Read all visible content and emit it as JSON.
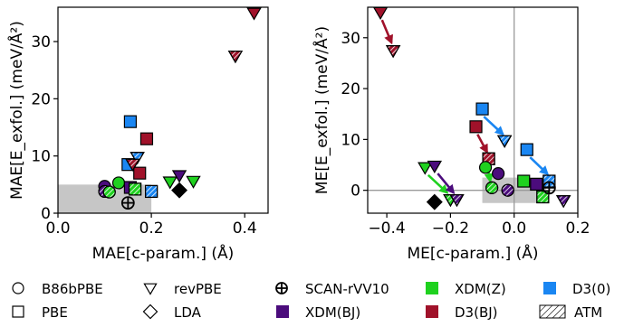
{
  "chart_data": [
    {
      "type": "scatter",
      "xlabel": "MAE[c-param.] (Å)",
      "ylabel": "MAE[E_exfol.] (meV/Å²)",
      "xlim": [
        0,
        0.45
      ],
      "ylim": [
        0,
        36
      ],
      "xticks": [
        "0.0",
        "0.2",
        "0.4"
      ],
      "yticks": [
        "0",
        "10",
        "20",
        "30"
      ],
      "shaded_region": {
        "x": [
          0,
          0.2
        ],
        "y": [
          0,
          5
        ]
      },
      "points": [
        {
          "group": "B86bPBE",
          "marker": "circle",
          "model": "XDM(BJ)",
          "hatch": false,
          "x": 0.1,
          "y": 4.7
        },
        {
          "group": "B86bPBE",
          "marker": "circle",
          "model": "XDM(BJ)",
          "hatch": true,
          "x": 0.1,
          "y": 3.8
        },
        {
          "group": "B86bPBE",
          "marker": "circle",
          "model": "XDM(Z)",
          "hatch": true,
          "x": 0.11,
          "y": 3.7
        },
        {
          "group": "B86bPBE",
          "marker": "circle",
          "model": "XDM(Z)",
          "hatch": false,
          "x": 0.13,
          "y": 5.3
        },
        {
          "group": "PBE",
          "marker": "square",
          "model": "D3(0)",
          "hatch": false,
          "x": 0.155,
          "y": 16.0
        },
        {
          "group": "PBE",
          "marker": "square",
          "model": "D3(BJ)",
          "hatch": false,
          "x": 0.19,
          "y": 13.0
        },
        {
          "group": "PBE",
          "marker": "square",
          "model": "D3(0)",
          "hatch": false,
          "x": 0.15,
          "y": 8.5
        },
        {
          "group": "PBE",
          "marker": "square",
          "model": "D3(BJ)",
          "hatch": false,
          "x": 0.175,
          "y": 7.0
        },
        {
          "group": "PBE",
          "marker": "square",
          "model": "XDM(BJ)",
          "hatch": false,
          "x": 0.155,
          "y": 4.5
        },
        {
          "group": "PBE",
          "marker": "square",
          "model": "XDM(Z)",
          "hatch": true,
          "x": 0.165,
          "y": 4.2
        },
        {
          "group": "PBE",
          "marker": "square",
          "model": "D3(0)",
          "hatch": true,
          "x": 0.2,
          "y": 3.8
        },
        {
          "group": "revPBE",
          "marker": "triangle",
          "model": "D3(0)",
          "hatch": true,
          "x": 0.17,
          "y": 9.8
        },
        {
          "group": "revPBE",
          "marker": "triangle",
          "model": "D3(BJ)",
          "hatch": true,
          "x": 0.16,
          "y": 8.6
        },
        {
          "group": "revPBE",
          "marker": "triangle",
          "model": "XDM(Z)",
          "hatch": false,
          "x": 0.24,
          "y": 5.5
        },
        {
          "group": "revPBE",
          "marker": "triangle",
          "model": "XDM(BJ)",
          "hatch": false,
          "x": 0.26,
          "y": 6.6
        },
        {
          "group": "revPBE",
          "marker": "triangle",
          "model": "XDM(Z)",
          "hatch": false,
          "x": 0.29,
          "y": 5.6
        },
        {
          "group": "revPBE",
          "marker": "triangle",
          "model": "D3(BJ)",
          "hatch": false,
          "x": 0.42,
          "y": 35.0
        },
        {
          "group": "revPBE",
          "marker": "triangle",
          "model": "D3(BJ)",
          "hatch": true,
          "x": 0.38,
          "y": 27.5
        },
        {
          "group": "LDA",
          "marker": "diamond",
          "model": "none",
          "hatch": false,
          "x": 0.26,
          "y": 4.0
        },
        {
          "group": "SCAN-rVV10",
          "marker": "circleplus",
          "model": "none",
          "hatch": false,
          "x": 0.15,
          "y": 1.8
        }
      ]
    },
    {
      "type": "scatter",
      "xlabel": "ME[c-param.] (Å)",
      "ylabel": "ME[E_exfol.] (meV/Å²)",
      "xlim": [
        -0.46,
        0.2
      ],
      "ylim": [
        -4.5,
        36
      ],
      "xticks": [
        "−0.4",
        "−0.2",
        "0.0",
        "0.2"
      ],
      "yticks": [
        "0",
        "10",
        "20",
        "30"
      ],
      "shaded_region": {
        "x": [
          -0.1,
          0.1
        ],
        "y": [
          -2.5,
          2.5
        ]
      },
      "reference_lines": {
        "x": 0,
        "y": 0
      },
      "points": [
        {
          "group": "revPBE",
          "marker": "triangle",
          "model": "D3(BJ)",
          "hatch": false,
          "x": -0.42,
          "y": 35.0
        },
        {
          "group": "revPBE",
          "marker": "triangle",
          "model": "D3(BJ)",
          "hatch": true,
          "x": -0.38,
          "y": 27.5
        },
        {
          "group": "PBE",
          "marker": "square",
          "model": "D3(0)",
          "hatch": false,
          "x": -0.1,
          "y": 16.0
        },
        {
          "group": "revPBE",
          "marker": "triangle",
          "model": "D3(0)",
          "hatch": true,
          "x": -0.03,
          "y": 9.8
        },
        {
          "group": "PBE",
          "marker": "square",
          "model": "D3(BJ)",
          "hatch": false,
          "x": -0.12,
          "y": 12.5
        },
        {
          "group": "PBE",
          "marker": "square",
          "model": "D3(BJ)",
          "hatch": true,
          "x": -0.08,
          "y": 6.2
        },
        {
          "group": "PBE",
          "marker": "square",
          "model": "D3(0)",
          "hatch": false,
          "x": 0.04,
          "y": 8.0
        },
        {
          "group": "PBE",
          "marker": "square",
          "model": "D3(0)",
          "hatch": true,
          "x": 0.11,
          "y": 1.8
        },
        {
          "group": "revPBE",
          "marker": "triangle",
          "model": "XDM(Z)",
          "hatch": false,
          "x": -0.28,
          "y": 4.5
        },
        {
          "group": "revPBE",
          "marker": "triangle",
          "model": "XDM(Z)",
          "hatch": true,
          "x": -0.2,
          "y": -1.8
        },
        {
          "group": "revPBE",
          "marker": "triangle",
          "model": "XDM(BJ)",
          "hatch": false,
          "x": -0.25,
          "y": 4.8
        },
        {
          "group": "revPBE",
          "marker": "triangle",
          "model": "XDM(BJ)",
          "hatch": true,
          "x": -0.18,
          "y": -1.8
        },
        {
          "group": "B86bPBE",
          "marker": "circle",
          "model": "XDM(Z)",
          "hatch": false,
          "x": -0.09,
          "y": 4.5
        },
        {
          "group": "B86bPBE",
          "marker": "circle",
          "model": "XDM(Z)",
          "hatch": true,
          "x": -0.07,
          "y": 0.5
        },
        {
          "group": "B86bPBE",
          "marker": "circle",
          "model": "XDM(BJ)",
          "hatch": false,
          "x": -0.05,
          "y": 3.3
        },
        {
          "group": "B86bPBE",
          "marker": "circle",
          "model": "XDM(BJ)",
          "hatch": true,
          "x": -0.02,
          "y": 0.0
        },
        {
          "group": "PBE",
          "marker": "square",
          "model": "XDM(Z)",
          "hatch": false,
          "x": 0.03,
          "y": 1.8
        },
        {
          "group": "PBE",
          "marker": "square",
          "model": "XDM(Z)",
          "hatch": true,
          "x": 0.09,
          "y": -1.3
        },
        {
          "group": "PBE",
          "marker": "square",
          "model": "XDM(BJ)",
          "hatch": false,
          "x": 0.07,
          "y": 1.2
        },
        {
          "group": "revPBE",
          "marker": "triangle",
          "model": "XDM(BJ)",
          "hatch": true,
          "x": 0.155,
          "y": -2.0
        },
        {
          "group": "LDA",
          "marker": "diamond",
          "model": "none",
          "hatch": false,
          "x": -0.25,
          "y": -2.3
        },
        {
          "group": "SCAN-rVV10",
          "marker": "circleplus",
          "model": "none",
          "hatch": false,
          "x": 0.11,
          "y": 0.5
        }
      ],
      "arrows": [
        {
          "from": [
            -0.415,
            33.5
          ],
          "to": [
            -0.385,
            29.0
          ],
          "model": "D3(BJ)"
        },
        {
          "from": [
            -0.095,
            14.5
          ],
          "to": [
            -0.035,
            11.0
          ],
          "model": "D3(0)"
        },
        {
          "from": [
            -0.115,
            11.0
          ],
          "to": [
            -0.085,
            7.5
          ],
          "model": "D3(BJ)"
        },
        {
          "from": [
            0.05,
            6.5
          ],
          "to": [
            0.105,
            3.2
          ],
          "model": "D3(0)"
        },
        {
          "from": [
            -0.27,
            3.0
          ],
          "to": [
            -0.21,
            -0.5
          ],
          "model": "XDM(Z)"
        },
        {
          "from": [
            -0.24,
            3.3
          ],
          "to": [
            -0.19,
            -0.5
          ],
          "model": "XDM(BJ)"
        },
        {
          "from": [
            -0.08,
            3.5
          ],
          "to": [
            -0.075,
            1.8
          ],
          "model": "XDM(Z)"
        }
      ]
    }
  ],
  "legend": {
    "entries": [
      {
        "label": "B86bPBE",
        "symbol": "circle"
      },
      {
        "label": "PBE",
        "symbol": "square"
      },
      {
        "label": "revPBE",
        "symbol": "triangle"
      },
      {
        "label": "LDA",
        "symbol": "diamond"
      },
      {
        "label": "SCAN-rVV10",
        "symbol": "circleplus"
      },
      {
        "label": "XDM(BJ)",
        "symbol": "color-XDM(BJ)"
      },
      {
        "label": "XDM(Z)",
        "symbol": "color-XDM(Z)"
      },
      {
        "label": "D3(BJ)",
        "symbol": "color-D3(BJ)"
      },
      {
        "label": "D3(0)",
        "symbol": "color-D3(0)"
      },
      {
        "label": "ATM",
        "symbol": "hatch"
      }
    ]
  },
  "colors": {
    "XDM(BJ)": "#4b0c7c",
    "XDM(Z)": "#1fd11f",
    "D3(BJ)": "#a0122a",
    "D3(0)": "#1a86f2",
    "none": "#000000",
    "shade": "#c6c6c6"
  }
}
